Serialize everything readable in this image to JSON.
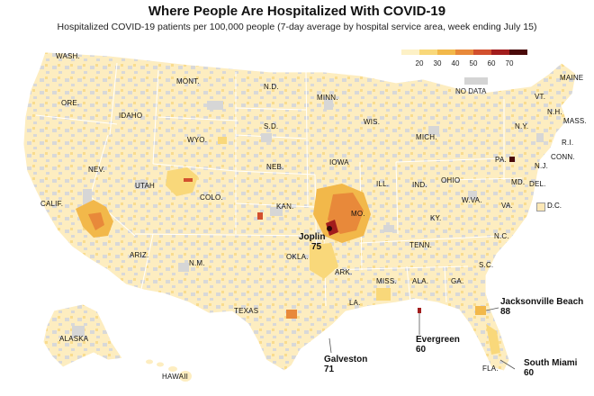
{
  "title": "Where People Are Hospitalized With COVID-19",
  "subtitle": "Hospitalized COVID-19 patients per 100,000 people (7-day average by hospital service area, week ending July 15)",
  "legend": {
    "ticks": [
      "20",
      "30",
      "40",
      "50",
      "60",
      "70"
    ],
    "colors": [
      "#fdf1c6",
      "#f9d87a",
      "#f2b84a",
      "#e8893a",
      "#d2502e",
      "#a21d1d",
      "#4a0a0a"
    ],
    "no_data_label": "NO DATA",
    "no_data_color": "#d4d4d4"
  },
  "dc_label": "D.C.",
  "states": [
    "WASH.",
    "ORE.",
    "IDAHO",
    "MONT.",
    "WYO.",
    "N.D.",
    "S.D.",
    "NEB.",
    "MINN.",
    "IOWA",
    "WIS.",
    "MICH.",
    "ILL.",
    "IND.",
    "OHIO",
    "W.VA.",
    "VA.",
    "KY.",
    "TENN.",
    "N.C.",
    "S.C.",
    "GA.",
    "ALA.",
    "MISS.",
    "LA.",
    "ARK.",
    "MO.",
    "KAN.",
    "OKLA.",
    "TEXAS",
    "N.M.",
    "COLO.",
    "UTAH",
    "NEV.",
    "CALIF.",
    "ARIZ.",
    "ALASKA",
    "HAWAII",
    "FLA.",
    "PA.",
    "N.Y.",
    "VT.",
    "N.H.",
    "MAINE",
    "MASS.",
    "R.I.",
    "CONN.",
    "N.J.",
    "MD.",
    "DEL."
  ],
  "callouts": [
    {
      "name": "Joplin",
      "value": "75"
    },
    {
      "name": "Jacksonville Beach",
      "value": "88"
    },
    {
      "name": "Evergreen",
      "value": "60"
    },
    {
      "name": "Galveston",
      "value": "71"
    },
    {
      "name": "South Miami",
      "value": "60"
    }
  ]
}
